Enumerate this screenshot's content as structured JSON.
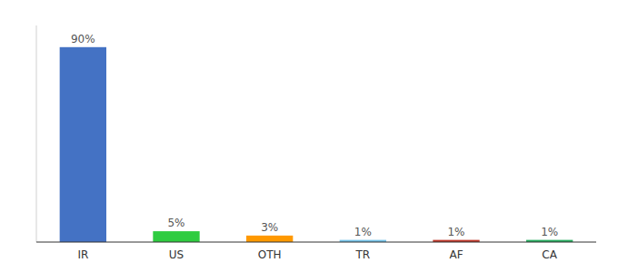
{
  "chart_data": {
    "type": "bar",
    "categories": [
      "IR",
      "US",
      "OTH",
      "TR",
      "AF",
      "CA"
    ],
    "values": [
      90,
      5,
      3,
      1,
      1,
      1
    ],
    "value_labels": [
      "90%",
      "5%",
      "3%",
      "1%",
      "1%",
      "1%"
    ],
    "colors": [
      "#4472C4",
      "#2ECC40",
      "#FF9900",
      "#74C2E8",
      "#C0392B",
      "#27AE60"
    ],
    "ylim": [
      0,
      100
    ],
    "data_labels": true,
    "tick_labels": "x",
    "grid": false
  }
}
